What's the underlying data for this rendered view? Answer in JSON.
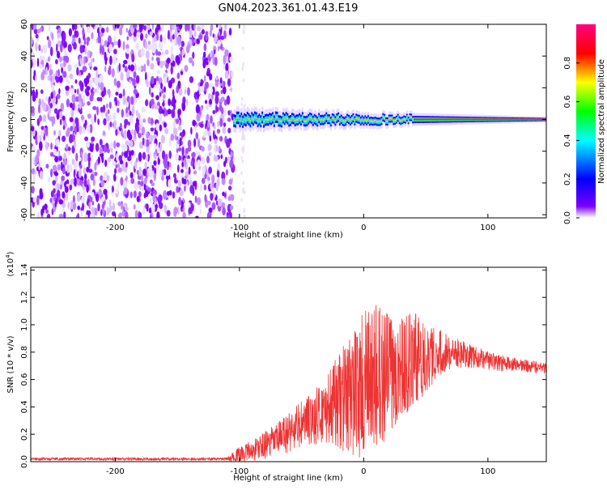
{
  "chart_data": [
    {
      "type": "heatmap",
      "title": "GN04.2023.361.01.43.E19",
      "xlabel": "Height of straight line (km)",
      "ylabel": "Frequency (Hz)",
      "xlim": [
        -268,
        147
      ],
      "ylim": [
        -62,
        60
      ],
      "xticks": [
        "-200",
        "-100",
        "0",
        "100"
      ],
      "xtick_values": [
        -200,
        -100,
        0,
        100
      ],
      "yticks": [
        "-60",
        "-40",
        "-20",
        "0",
        "20",
        "40",
        "60"
      ],
      "ytick_values": [
        -60,
        -40,
        -20,
        0,
        20,
        40,
        60
      ],
      "colorbar": {
        "label": "Normalized spectral amplitude",
        "range": [
          0,
          1
        ],
        "ticks": [
          "0.0",
          "0.2",
          "0.4",
          "0.6",
          "0.8"
        ],
        "tick_values": [
          0,
          0.2,
          0.4,
          0.6,
          0.8
        ],
        "colors": [
          "#ffffff",
          "#7a00ff",
          "#0000ff",
          "#00ffff",
          "#00ff00",
          "#ffff00",
          "#ff0000",
          "#ff0080"
        ]
      },
      "noise_band": {
        "x_from": -268,
        "x_to": -105,
        "freq_from": -62,
        "freq_to": 60
      },
      "signal_band": {
        "x_from": -105,
        "x_to": 147,
        "center_freq": 0,
        "halfwidth_at_start": 4,
        "halfwidth_at_end": 1
      },
      "grid": false
    },
    {
      "type": "line",
      "xlabel": "Height of straight line (km)",
      "ylabel": "SNR (10 * v/v)",
      "scale_note": "(x10",
      "scale_exponent": "4",
      "scale_suffix": ")",
      "xlim": [
        -268,
        147
      ],
      "ylim": [
        0,
        1.42
      ],
      "xticks": [
        "-200",
        "-100",
        "0",
        "100"
      ],
      "xtick_values": [
        -200,
        -100,
        0,
        100
      ],
      "yticks": [
        "0.0",
        "0.2",
        "0.4",
        "0.6",
        "0.8",
        "1.0",
        "1.2",
        "1.4"
      ],
      "ytick_values": [
        0,
        0.2,
        0.4,
        0.6,
        0.8,
        1.0,
        1.2,
        1.4
      ],
      "line_color": "#ee3333",
      "envelope": {
        "x": [
          -268,
          -110,
          -100,
          -90,
          -80,
          -70,
          -60,
          -50,
          -40,
          -30,
          -20,
          -10,
          0,
          10,
          20,
          30,
          40,
          50,
          60,
          70,
          80,
          90,
          100,
          110,
          120,
          130,
          147
        ],
        "base": [
          0.02,
          0.02,
          0.05,
          0.08,
          0.12,
          0.16,
          0.22,
          0.27,
          0.32,
          0.38,
          0.44,
          0.5,
          0.55,
          0.6,
          0.65,
          0.7,
          0.74,
          0.78,
          0.8,
          0.8,
          0.78,
          0.76,
          0.74,
          0.72,
          0.71,
          0.7,
          0.68
        ],
        "spread": [
          0.01,
          0.01,
          0.06,
          0.08,
          0.1,
          0.12,
          0.16,
          0.18,
          0.2,
          0.25,
          0.35,
          0.45,
          0.55,
          0.55,
          0.45,
          0.4,
          0.35,
          0.28,
          0.18,
          0.12,
          0.1,
          0.08,
          0.07,
          0.06,
          0.05,
          0.05,
          0.04
        ]
      },
      "grid": false
    }
  ]
}
